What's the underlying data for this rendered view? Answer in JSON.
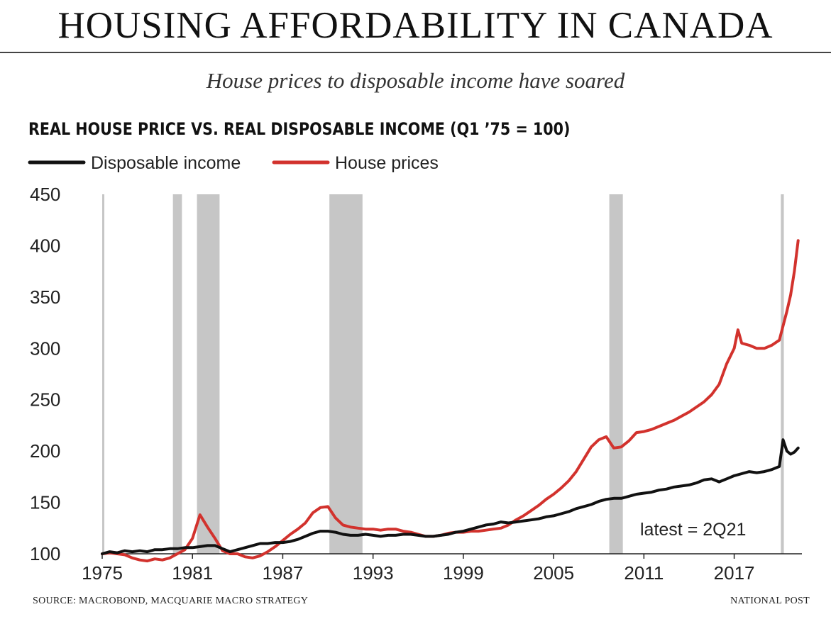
{
  "header": {
    "title": "HOUSING AFFORDABILITY IN CANADA",
    "subtitle": "House prices to disposable income have soared"
  },
  "footer": {
    "source": "SOURCE: MACROBOND, MACQUARIE MACRO STRATEGY",
    "credit": "NATIONAL POST"
  },
  "chart_data": {
    "type": "line",
    "title": "REAL HOUSE PRICE VS. REAL DISPOSABLE INCOME (Q1 ’75 = 100)",
    "xlabel": "",
    "ylabel": "",
    "xlim": [
      1975,
      2021.5
    ],
    "ylim": [
      100,
      450
    ],
    "x_ticks": [
      "1975",
      "1981",
      "1987",
      "1993",
      "1999",
      "2005",
      "2011",
      "2017"
    ],
    "y_ticks": [
      "100",
      "150",
      "200",
      "250",
      "300",
      "350",
      "400",
      "450"
    ],
    "grid": false,
    "legend_position": "top-left",
    "annotation": "latest = 2Q21",
    "recessions": [
      [
        1975.0,
        1975.1
      ],
      [
        1979.7,
        1980.3
      ],
      [
        1981.3,
        1982.8
      ],
      [
        1990.1,
        1992.3
      ],
      [
        2008.7,
        2009.6
      ],
      [
        2020.1,
        2020.3
      ]
    ],
    "series": [
      {
        "name": "Disposable income",
        "color": "#111111",
        "points": [
          [
            1975.0,
            100
          ],
          [
            1975.5,
            102
          ],
          [
            1976.0,
            101
          ],
          [
            1976.5,
            103
          ],
          [
            1977.0,
            102
          ],
          [
            1977.5,
            103
          ],
          [
            1978.0,
            102
          ],
          [
            1978.5,
            104
          ],
          [
            1979.0,
            104
          ],
          [
            1979.5,
            105
          ],
          [
            1980.0,
            105
          ],
          [
            1980.5,
            106
          ],
          [
            1981.0,
            106
          ],
          [
            1981.5,
            107
          ],
          [
            1982.0,
            108
          ],
          [
            1982.5,
            108
          ],
          [
            1983.0,
            105
          ],
          [
            1983.5,
            102
          ],
          [
            1984.0,
            104
          ],
          [
            1984.5,
            106
          ],
          [
            1985.0,
            108
          ],
          [
            1985.5,
            110
          ],
          [
            1986.0,
            110
          ],
          [
            1986.5,
            111
          ],
          [
            1987.0,
            111
          ],
          [
            1987.5,
            112
          ],
          [
            1988.0,
            114
          ],
          [
            1988.5,
            117
          ],
          [
            1989.0,
            120
          ],
          [
            1989.5,
            122
          ],
          [
            1990.0,
            122
          ],
          [
            1990.5,
            121
          ],
          [
            1991.0,
            119
          ],
          [
            1991.5,
            118
          ],
          [
            1992.0,
            118
          ],
          [
            1992.5,
            119
          ],
          [
            1993.0,
            118
          ],
          [
            1993.5,
            117
          ],
          [
            1994.0,
            118
          ],
          [
            1994.5,
            118
          ],
          [
            1995.0,
            119
          ],
          [
            1995.5,
            119
          ],
          [
            1996.0,
            118
          ],
          [
            1996.5,
            117
          ],
          [
            1997.0,
            117
          ],
          [
            1997.5,
            118
          ],
          [
            1998.0,
            119
          ],
          [
            1998.5,
            121
          ],
          [
            1999.0,
            122
          ],
          [
            1999.5,
            124
          ],
          [
            2000.0,
            126
          ],
          [
            2000.5,
            128
          ],
          [
            2001.0,
            129
          ],
          [
            2001.5,
            131
          ],
          [
            2002.0,
            130
          ],
          [
            2002.5,
            131
          ],
          [
            2003.0,
            132
          ],
          [
            2003.5,
            133
          ],
          [
            2004.0,
            134
          ],
          [
            2004.5,
            136
          ],
          [
            2005.0,
            137
          ],
          [
            2005.5,
            139
          ],
          [
            2006.0,
            141
          ],
          [
            2006.5,
            144
          ],
          [
            2007.0,
            146
          ],
          [
            2007.5,
            148
          ],
          [
            2008.0,
            151
          ],
          [
            2008.5,
            153
          ],
          [
            2009.0,
            154
          ],
          [
            2009.5,
            154
          ],
          [
            2010.0,
            156
          ],
          [
            2010.5,
            158
          ],
          [
            2011.0,
            159
          ],
          [
            2011.5,
            160
          ],
          [
            2012.0,
            162
          ],
          [
            2012.5,
            163
          ],
          [
            2013.0,
            165
          ],
          [
            2013.5,
            166
          ],
          [
            2014.0,
            167
          ],
          [
            2014.5,
            169
          ],
          [
            2015.0,
            172
          ],
          [
            2015.5,
            173
          ],
          [
            2016.0,
            170
          ],
          [
            2016.5,
            173
          ],
          [
            2017.0,
            176
          ],
          [
            2017.5,
            178
          ],
          [
            2018.0,
            180
          ],
          [
            2018.5,
            179
          ],
          [
            2019.0,
            180
          ],
          [
            2019.5,
            182
          ],
          [
            2020.0,
            185
          ],
          [
            2020.25,
            211
          ],
          [
            2020.5,
            200
          ],
          [
            2020.75,
            197
          ],
          [
            2021.0,
            199
          ],
          [
            2021.25,
            203
          ]
        ]
      },
      {
        "name": "House prices",
        "color": "#d2322d",
        "points": [
          [
            1975.0,
            100
          ],
          [
            1975.5,
            101
          ],
          [
            1976.0,
            100
          ],
          [
            1976.5,
            99
          ],
          [
            1977.0,
            96
          ],
          [
            1977.5,
            94
          ],
          [
            1978.0,
            93
          ],
          [
            1978.5,
            95
          ],
          [
            1979.0,
            94
          ],
          [
            1979.5,
            96
          ],
          [
            1980.0,
            100
          ],
          [
            1980.5,
            104
          ],
          [
            1981.0,
            115
          ],
          [
            1981.5,
            138
          ],
          [
            1982.0,
            126
          ],
          [
            1982.5,
            115
          ],
          [
            1983.0,
            103
          ],
          [
            1983.5,
            100
          ],
          [
            1984.0,
            100
          ],
          [
            1984.5,
            97
          ],
          [
            1985.0,
            96
          ],
          [
            1985.5,
            98
          ],
          [
            1986.0,
            102
          ],
          [
            1986.5,
            107
          ],
          [
            1987.0,
            113
          ],
          [
            1987.5,
            119
          ],
          [
            1988.0,
            124
          ],
          [
            1988.5,
            130
          ],
          [
            1989.0,
            140
          ],
          [
            1989.5,
            145
          ],
          [
            1990.0,
            146
          ],
          [
            1990.5,
            135
          ],
          [
            1991.0,
            128
          ],
          [
            1991.5,
            126
          ],
          [
            1992.0,
            125
          ],
          [
            1992.5,
            124
          ],
          [
            1993.0,
            124
          ],
          [
            1993.5,
            123
          ],
          [
            1994.0,
            124
          ],
          [
            1994.5,
            124
          ],
          [
            1995.0,
            122
          ],
          [
            1995.5,
            121
          ],
          [
            1996.0,
            119
          ],
          [
            1996.5,
            117
          ],
          [
            1997.0,
            117
          ],
          [
            1997.5,
            118
          ],
          [
            1998.0,
            120
          ],
          [
            1998.5,
            121
          ],
          [
            1999.0,
            121
          ],
          [
            1999.5,
            122
          ],
          [
            2000.0,
            122
          ],
          [
            2000.5,
            123
          ],
          [
            2001.0,
            124
          ],
          [
            2001.5,
            125
          ],
          [
            2002.0,
            128
          ],
          [
            2002.5,
            133
          ],
          [
            2003.0,
            137
          ],
          [
            2003.5,
            142
          ],
          [
            2004.0,
            147
          ],
          [
            2004.5,
            153
          ],
          [
            2005.0,
            158
          ],
          [
            2005.5,
            164
          ],
          [
            2006.0,
            171
          ],
          [
            2006.5,
            180
          ],
          [
            2007.0,
            192
          ],
          [
            2007.5,
            204
          ],
          [
            2008.0,
            211
          ],
          [
            2008.5,
            214
          ],
          [
            2009.0,
            203
          ],
          [
            2009.5,
            204
          ],
          [
            2010.0,
            210
          ],
          [
            2010.5,
            218
          ],
          [
            2011.0,
            219
          ],
          [
            2011.5,
            221
          ],
          [
            2012.0,
            224
          ],
          [
            2012.5,
            227
          ],
          [
            2013.0,
            230
          ],
          [
            2013.5,
            234
          ],
          [
            2014.0,
            238
          ],
          [
            2014.5,
            243
          ],
          [
            2015.0,
            248
          ],
          [
            2015.5,
            255
          ],
          [
            2016.0,
            265
          ],
          [
            2016.5,
            285
          ],
          [
            2017.0,
            300
          ],
          [
            2017.25,
            318
          ],
          [
            2017.5,
            305
          ],
          [
            2018.0,
            303
          ],
          [
            2018.5,
            300
          ],
          [
            2019.0,
            300
          ],
          [
            2019.5,
            303
          ],
          [
            2020.0,
            308
          ],
          [
            2020.25,
            322
          ],
          [
            2020.5,
            336
          ],
          [
            2020.75,
            352
          ],
          [
            2021.0,
            375
          ],
          [
            2021.25,
            405
          ]
        ]
      }
    ]
  }
}
